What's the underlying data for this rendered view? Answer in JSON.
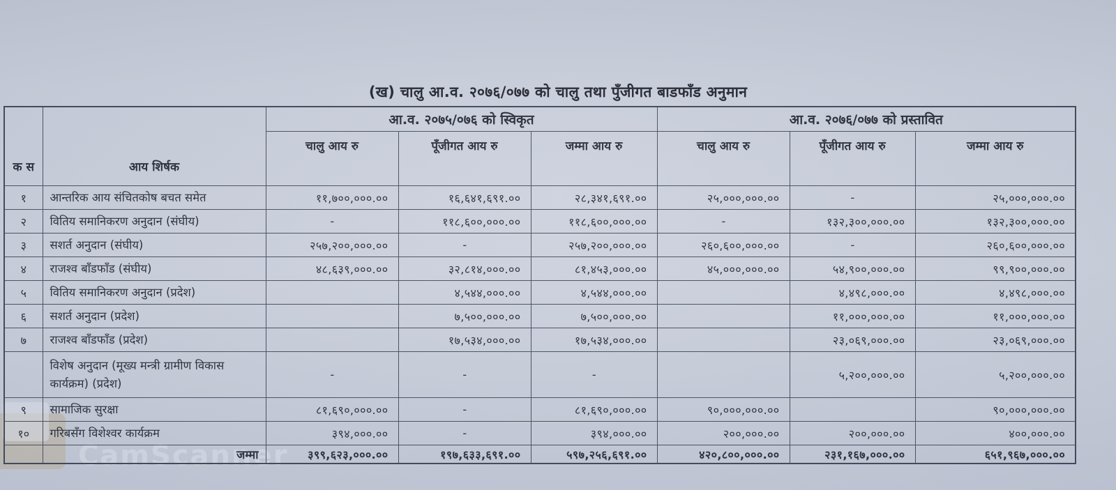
{
  "page": {
    "title": "(ख) चालु आ.व. २०७६/०७७ को चालु तथा पुँजीगत बाडफाँड अनुमान"
  },
  "table": {
    "group_headers": {
      "approved": "आ.व. २०७५/०७६ को स्विकृत",
      "proposed": "आ.व. २०७६/०७७ को प्रस्तावित"
    },
    "column_headers": {
      "sn": "क स",
      "income_title": "आय शिर्षक",
      "approved_current": "चालु आय रु",
      "approved_capital": "पूँजीगत आय रु",
      "approved_total": "जम्मा आय रु",
      "proposed_current": "चालु आय रु",
      "proposed_capital": "पूँजीगत आय रु",
      "proposed_total": "जम्मा आय रु"
    },
    "rows": [
      {
        "sn": "१",
        "title": "आन्तरिक आय संचितकोष बचत समेत",
        "cells": [
          "११,७००,०००.००",
          "१६,६४१,६९१.००",
          "२८,३४१,६९१.००",
          "२५,०००,०००.००",
          "-",
          "२५,०००,०००.००"
        ]
      },
      {
        "sn": "२",
        "title": "वितिय समानिकरण अनुदान (संघीय)",
        "cells": [
          "-",
          "११८,६००,०००.००",
          "११८,६००,०००.००",
          "-",
          "१३२,३००,०००.००",
          "१३२,३००,०००.००"
        ]
      },
      {
        "sn": "३",
        "title": "सशर्त अनुदान (संघीय)",
        "cells": [
          "२५७,२००,०००.००",
          "-",
          "२५७,२००,०००.००",
          "२६०,६००,०००.००",
          "-",
          "२६०,६००,०००.००"
        ]
      },
      {
        "sn": "४",
        "title": "राजश्व बाँडफाँड (संघीय)",
        "cells": [
          "४८,६३९,०००.००",
          "३२,८१४,०००.००",
          "८१,४५३,०००.००",
          "४५,०००,०००.००",
          "५४,९००,०००.००",
          "९९,९००,०००.००"
        ]
      },
      {
        "sn": "५",
        "title": "वितिय समानिकरण अनुदान (प्रदेश)",
        "cells": [
          "",
          "४,५४४,०००.००",
          "४,५४४,०००.००",
          "",
          "४,४९८,०००.००",
          "४,४९८,०००.००"
        ]
      },
      {
        "sn": "६",
        "title": "सशर्त अनुदान (प्रदेश)",
        "cells": [
          "",
          "७,५००,०००.००",
          "७,५००,०००.००",
          "",
          "११,०००,०००.००",
          "११,०००,०००.००"
        ]
      },
      {
        "sn": "७",
        "title": "राजश्व बाँडफाँड (प्रदेश)",
        "cells": [
          "",
          "१७,५३४,०००.००",
          "१७,५३४,०००.००",
          "",
          "२३,०६९,०००.००",
          "२३,०६९,०००.००"
        ]
      },
      {
        "sn": "",
        "title": "विशेष अनुदान (मूख्य मन्त्री ग्रामीण विकास कार्यक्रम) (प्रदेश)",
        "cells": [
          "-",
          "-",
          "-",
          "",
          "५,२००,०००.००",
          "५,२००,०००.००"
        ]
      },
      {
        "sn": "९",
        "title": "सामाजिक सुरक्षा",
        "cells": [
          "८१,६९०,०००.००",
          "-",
          "८१,६९०,०००.००",
          "९०,०००,०००.००",
          "",
          "९०,०००,०००.००"
        ]
      },
      {
        "sn": "१०",
        "title": "गरिबसँग विशेश्वर कार्यक्रम",
        "cells": [
          "३९४,०००.००",
          "-",
          "३९४,०००.००",
          "२००,०००.००",
          "२००,०००.००",
          "४००,०००.००"
        ]
      }
    ],
    "total_row": {
      "label": "जम्मा",
      "cells": [
        "३९९,६२३,०००.००",
        "१९७,६३३,६९१.००",
        "५९७,२५६,६९१.००",
        "४२०,८००,०००.००",
        "२३१,१६७,०००.००",
        "६५१,९६७,०००.००"
      ]
    }
  },
  "watermark": {
    "text": "CamScanner"
  },
  "colors": {
    "paper": "#cdd2de",
    "ink": "#262b36",
    "grid_line": "#474d5c"
  }
}
